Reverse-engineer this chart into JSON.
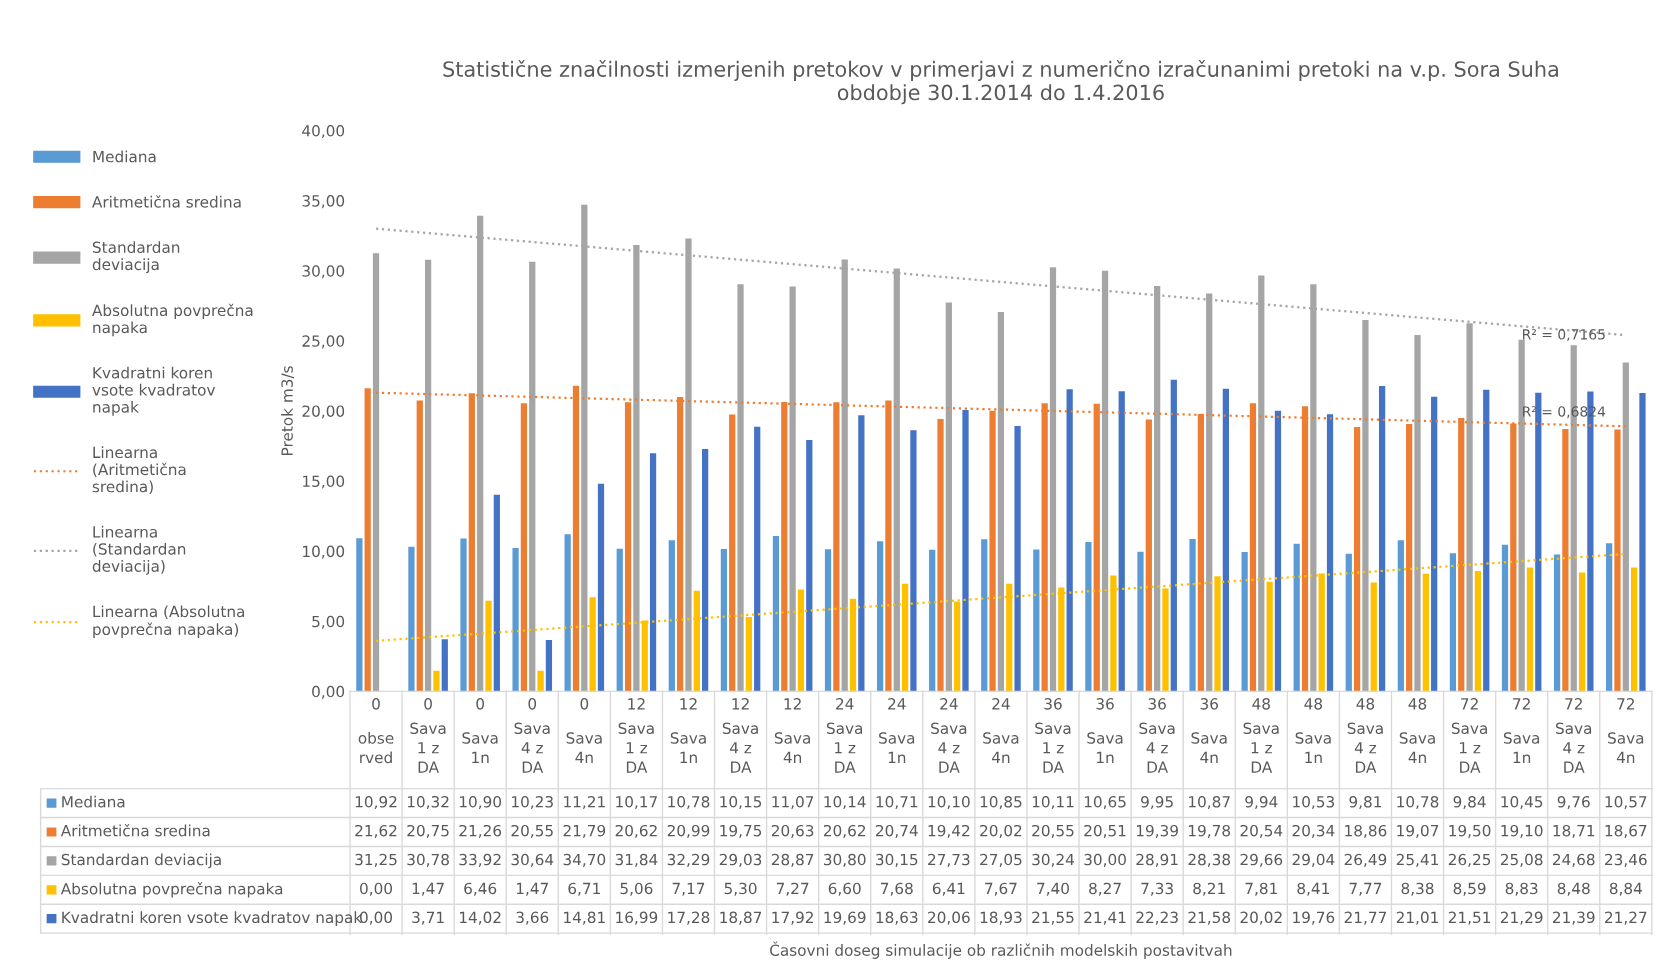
{
  "chart_data": {
    "type": "bar",
    "title": "Statistične značilnosti izmerjenih pretokov v primerjavi z numerično izračunanimi pretoki na v.p. Sora Suha\nobdobje 30.1.2014 do 1.4.2016",
    "ylabel": "Pretok m3/s",
    "categories": [
      "0\nobse rved",
      "0\nSava 1 z DA",
      "0\nSava 1n",
      "0\nSava 4 z DA",
      "0\nSava 4n",
      "12\nSava 1 z DA",
      "12\nSava 1n",
      "12\nSava 4 z DA",
      "12\nSava 4n",
      "24\nSava 1 z DA",
      "24\nSava 1n",
      "24\nSava 4 z DA",
      "24\nSava 4n",
      "36\nSava 1 z DA",
      "36\nSava 1n",
      "36\nSava 4 z DA",
      "36\nSava 4n",
      "48\nSava 1 z DA",
      "48\nSava 1n",
      "48\nSava 4 z DA",
      "48\nSava 4n",
      "72\nSava 1 z DA",
      "72\nSava 1n",
      "72\nSava 4 z DA",
      "72\nSava 4n"
    ],
    "series": [
      {
        "name": "Mediana",
        "color": "#5b9bd5",
        "values": [
          10.92,
          10.32,
          10.9,
          10.23,
          11.21,
          10.17,
          10.78,
          10.15,
          11.07,
          10.14,
          10.71,
          10.1,
          10.85,
          10.11,
          10.65,
          9.95,
          10.87,
          9.94,
          10.53,
          9.81,
          10.78,
          9.84,
          10.45,
          9.76,
          10.57
        ],
        "value_labels": [
          "10,92",
          "10,32",
          "10,90",
          "10,23",
          "11,21",
          "10,17",
          "10,78",
          "10,15",
          "11,07",
          "10,14",
          "10,71",
          "10,10",
          "10,85",
          "10,11",
          "10,65",
          "9,95",
          "10,87",
          "9,94",
          "10,53",
          "9,81",
          "10,78",
          "9,84",
          "10,45",
          "9,76",
          "10,57"
        ]
      },
      {
        "name": "Aritmetična sredina",
        "color": "#ed7d31",
        "values": [
          21.62,
          20.75,
          21.26,
          20.55,
          21.79,
          20.62,
          20.99,
          19.75,
          20.63,
          20.62,
          20.74,
          19.42,
          20.02,
          20.55,
          20.51,
          19.39,
          19.78,
          20.54,
          20.34,
          18.86,
          19.07,
          19.5,
          19.1,
          18.71,
          18.67
        ],
        "value_labels": [
          "21,62",
          "20,75",
          "21,26",
          "20,55",
          "21,79",
          "20,62",
          "20,99",
          "19,75",
          "20,63",
          "20,62",
          "20,74",
          "19,42",
          "20,02",
          "20,55",
          "20,51",
          "19,39",
          "19,78",
          "20,54",
          "20,34",
          "18,86",
          "19,07",
          "19,50",
          "19,10",
          "18,71",
          "18,67"
        ]
      },
      {
        "name": "Standardan deviacija",
        "color": "#a5a5a5",
        "values": [
          31.25,
          30.78,
          33.92,
          30.64,
          34.7,
          31.84,
          32.29,
          29.03,
          28.87,
          30.8,
          30.15,
          27.73,
          27.05,
          30.24,
          30.0,
          28.91,
          28.38,
          29.66,
          29.04,
          26.49,
          25.41,
          26.25,
          25.08,
          24.68,
          23.46
        ],
        "value_labels": [
          "31,25",
          "30,78",
          "33,92",
          "30,64",
          "34,70",
          "31,84",
          "32,29",
          "29,03",
          "28,87",
          "30,80",
          "30,15",
          "27,73",
          "27,05",
          "30,24",
          "30,00",
          "28,91",
          "28,38",
          "29,66",
          "29,04",
          "26,49",
          "25,41",
          "26,25",
          "25,08",
          "24,68",
          "23,46"
        ]
      },
      {
        "name": "Absolutna povprečna napaka",
        "color": "#ffc000",
        "values": [
          0.0,
          1.47,
          6.46,
          1.47,
          6.71,
          5.06,
          7.17,
          5.3,
          7.27,
          6.6,
          7.68,
          6.41,
          7.67,
          7.4,
          8.27,
          7.33,
          8.21,
          7.81,
          8.41,
          7.77,
          8.38,
          8.59,
          8.83,
          8.48,
          8.84
        ],
        "value_labels": [
          "0,00",
          "1,47",
          "6,46",
          "1,47",
          "6,71",
          "5,06",
          "7,17",
          "5,30",
          "7,27",
          "6,60",
          "7,68",
          "6,41",
          "7,67",
          "7,40",
          "8,27",
          "7,33",
          "8,21",
          "7,81",
          "8,41",
          "7,77",
          "8,38",
          "8,59",
          "8,83",
          "8,48",
          "8,84"
        ]
      },
      {
        "name": "Kvadratni koren vsote kvadratov napak",
        "color": "#4472c4",
        "values": [
          0.0,
          3.71,
          14.02,
          3.66,
          14.81,
          16.99,
          17.28,
          18.87,
          17.92,
          19.69,
          18.63,
          20.06,
          18.93,
          21.55,
          21.41,
          22.23,
          21.58,
          20.02,
          19.76,
          21.77,
          21.01,
          21.51,
          21.29,
          21.39,
          21.27
        ],
        "value_labels": [
          "0,00",
          "3,71",
          "14,02",
          "3,66",
          "14,81",
          "16,99",
          "17,28",
          "18,87",
          "17,92",
          "19,69",
          "18,63",
          "20,06",
          "18,93",
          "21,55",
          "21,41",
          "22,23",
          "21,58",
          "20,02",
          "19,76",
          "21,77",
          "21,01",
          "21,51",
          "21,29",
          "21,39",
          "21,27"
        ]
      },
      {
        "name": "Linearna (Aritmetična sredina)",
        "type": "line",
        "line_style": "dotted",
        "color": "#ed7d31",
        "values": [
          21.3,
          null,
          null,
          null,
          null,
          null,
          null,
          null,
          null,
          null,
          null,
          null,
          null,
          null,
          null,
          null,
          null,
          null,
          null,
          null,
          null,
          null,
          null,
          null,
          18.9
        ]
      },
      {
        "name": "Linearna (Standardan deviacija)",
        "type": "line",
        "line_style": "dotted",
        "color": "#a5a5a5",
        "values": [
          33.0,
          null,
          null,
          null,
          null,
          null,
          null,
          null,
          null,
          null,
          null,
          null,
          null,
          null,
          null,
          null,
          null,
          null,
          null,
          null,
          null,
          null,
          null,
          null,
          25.4
        ]
      },
      {
        "name": "Linearna (Absolutna povprečna napaka)",
        "type": "line",
        "line_style": "dotted",
        "color": "#ffc000",
        "values": [
          3.6,
          null,
          null,
          null,
          null,
          null,
          null,
          null,
          null,
          null,
          null,
          null,
          null,
          null,
          null,
          null,
          null,
          null,
          null,
          null,
          null,
          null,
          null,
          null,
          9.8
        ]
      }
    ],
    "ylim": [
      0,
      40
    ],
    "yticks": [
      {
        "value": 0,
        "label": "0,00"
      },
      {
        "value": 5,
        "label": "5,00"
      },
      {
        "value": 10,
        "label": "10,00"
      },
      {
        "value": 15,
        "label": "15,00"
      },
      {
        "value": 20,
        "label": "20,00"
      },
      {
        "value": 25,
        "label": "25,00"
      },
      {
        "value": 30,
        "label": "30,00"
      },
      {
        "value": 35,
        "label": "35,00"
      },
      {
        "value": 40,
        "label": "40,00"
      }
    ],
    "annotations": [
      {
        "text": "R² = 0,7165",
        "x": "72\nSava 1n",
        "y": 25.1
      },
      {
        "text": "R² = 0,6824",
        "x": "72\nSava 1n",
        "y": 19.6
      },
      "Časovni doseg simulacije ob različnih modelskih postavitvah"
    ],
    "legend": "left",
    "grid": false
  }
}
